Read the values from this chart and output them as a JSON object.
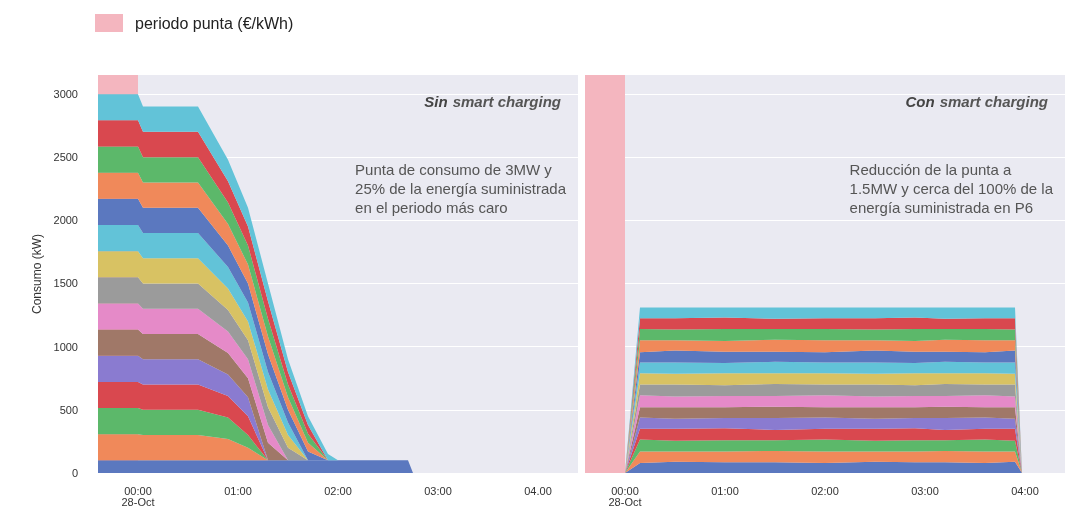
{
  "chart_data": [
    {
      "type": "area",
      "title": "Sin smart charging",
      "ylabel": "Consumo (kW)",
      "stacked": true,
      "grid": "y",
      "legend": "top left",
      "annotations": [
        "Punta de consumo de 3MW y\n25% de la energía suministrada\nen el periodo más caro"
      ],
      "bands": [
        {
          "axis": "x",
          "from": -0.4,
          "to": 0,
          "label": "periodo punta (€/kWh)",
          "color": "#f4b6bf"
        }
      ],
      "xlim": [
        -0.4,
        4.4
      ],
      "xticks": [
        {
          "value": 0,
          "label": "00:00\n28-Oct"
        },
        {
          "value": 1,
          "label": "01:00"
        },
        {
          "value": 2,
          "label": "02:00"
        },
        {
          "value": 3,
          "label": "03:00"
        },
        {
          "value": 4,
          "label": "04.00"
        }
      ],
      "ylim": [
        0,
        3150
      ],
      "yticks": [
        0,
        500,
        1000,
        1500,
        2000,
        2500,
        3000
      ],
      "x": [
        -0.4,
        0,
        0.05,
        0.6,
        0.9,
        1.1,
        1.3,
        1.5,
        1.7,
        1.9,
        2.0,
        2.7,
        2.75,
        4.4
      ],
      "series": [
        {
          "color": "#5b78bf",
          "values": [
            100,
            100,
            100,
            100,
            100,
            100,
            100,
            100,
            100,
            100,
            100,
            100,
            0,
            0
          ]
        },
        {
          "color": "#f0895a",
          "values": [
            207,
            207,
            200,
            200,
            170,
            100,
            0,
            0,
            0,
            0,
            0,
            0,
            0,
            0
          ]
        },
        {
          "color": "#5cb86a",
          "values": [
            207,
            207,
            200,
            200,
            170,
            100,
            0,
            0,
            0,
            0,
            0,
            0,
            0,
            0
          ]
        },
        {
          "color": "#d9484f",
          "values": [
            207,
            207,
            200,
            200,
            170,
            150,
            0,
            0,
            0,
            0,
            0,
            0,
            0,
            0
          ]
        },
        {
          "color": "#8a7bd0",
          "values": [
            207,
            207,
            200,
            200,
            170,
            150,
            0,
            0,
            0,
            0,
            0,
            0,
            0,
            0
          ]
        },
        {
          "color": "#a07868",
          "values": [
            207,
            207,
            200,
            200,
            170,
            150,
            140,
            0,
            0,
            0,
            0,
            0,
            0,
            0
          ]
        },
        {
          "color": "#e58ac8",
          "values": [
            207,
            207,
            200,
            200,
            170,
            150,
            140,
            0,
            0,
            0,
            0,
            0,
            0,
            0
          ]
        },
        {
          "color": "#9b9b9b",
          "values": [
            207,
            207,
            200,
            200,
            170,
            150,
            140,
            100,
            0,
            0,
            0,
            0,
            0,
            0
          ]
        },
        {
          "color": "#d8c263",
          "values": [
            207,
            207,
            200,
            200,
            170,
            150,
            140,
            100,
            0,
            0,
            0,
            0,
            0,
            0
          ]
        },
        {
          "color": "#62c3d8",
          "values": [
            207,
            207,
            200,
            200,
            170,
            150,
            140,
            100,
            0,
            0,
            0,
            0,
            0,
            0
          ]
        },
        {
          "color": "#5b78bf",
          "values": [
            207,
            207,
            200,
            200,
            170,
            150,
            140,
            100,
            70,
            0,
            0,
            0,
            0,
            0
          ]
        },
        {
          "color": "#f0895a",
          "values": [
            207,
            207,
            200,
            200,
            170,
            150,
            140,
            100,
            70,
            0,
            0,
            0,
            0,
            0
          ]
        },
        {
          "color": "#5cb86a",
          "values": [
            207,
            207,
            200,
            200,
            170,
            150,
            140,
            100,
            70,
            0,
            0,
            0,
            0,
            0
          ]
        },
        {
          "color": "#d9484f",
          "values": [
            207,
            207,
            200,
            200,
            170,
            150,
            140,
            100,
            70,
            0,
            0,
            0,
            0,
            0
          ]
        },
        {
          "color": "#62c3d8",
          "values": [
            207,
            207,
            200,
            200,
            170,
            150,
            140,
            100,
            70,
            50,
            0,
            0,
            0,
            0
          ]
        }
      ]
    },
    {
      "type": "area",
      "title": "Con smart charging",
      "stacked": true,
      "grid": "y",
      "tick_labels": "x",
      "annotations": [
        "Reducción de la punta a\n1.5MW y cerca del 100% de la\nenergía suministrada en P6"
      ],
      "bands": [
        {
          "axis": "x",
          "from": -0.4,
          "to": 0,
          "color": "#f4b6bf"
        }
      ],
      "xlim": [
        -0.4,
        4.4
      ],
      "xticks": [
        {
          "value": 0,
          "label": "00:00\n28-Oct"
        },
        {
          "value": 1,
          "label": "01:00"
        },
        {
          "value": 2,
          "label": "02:00"
        },
        {
          "value": 3,
          "label": "03:00"
        },
        {
          "value": 4,
          "label": "04:00"
        }
      ],
      "ylim": [
        0,
        3150
      ],
      "yticks": [
        0,
        500,
        1000,
        1500,
        2000,
        2500,
        3000
      ],
      "x": [
        -0.4,
        0,
        0.15,
        0.5,
        1.0,
        1.5,
        2.0,
        2.5,
        2.9,
        3.2,
        3.6,
        3.9,
        3.97,
        4.4
      ],
      "series": [
        {
          "color": "#5b78bf",
          "values": [
            0,
            0,
            80,
            90,
            85,
            85,
            80,
            90,
            85,
            85,
            80,
            90,
            0,
            0
          ]
        },
        {
          "color": "#f0895a",
          "values": [
            0,
            0,
            90,
            80,
            85,
            90,
            90,
            80,
            85,
            90,
            90,
            80,
            0,
            0
          ]
        },
        {
          "color": "#5cb86a",
          "values": [
            0,
            0,
            95,
            85,
            90,
            85,
            95,
            85,
            90,
            85,
            95,
            85,
            0,
            0
          ]
        },
        {
          "color": "#d9484f",
          "values": [
            0,
            0,
            85,
            95,
            95,
            80,
            85,
            95,
            95,
            80,
            85,
            95,
            0,
            0
          ]
        },
        {
          "color": "#8a7bd0",
          "values": [
            0,
            0,
            90,
            80,
            80,
            95,
            90,
            80,
            80,
            95,
            90,
            80,
            0,
            0
          ]
        },
        {
          "color": "#a07868",
          "values": [
            0,
            0,
            80,
            90,
            85,
            90,
            80,
            90,
            85,
            90,
            80,
            90,
            0,
            0
          ]
        },
        {
          "color": "#e58ac8",
          "values": [
            0,
            0,
            95,
            85,
            90,
            85,
            95,
            85,
            90,
            85,
            95,
            85,
            0,
            0
          ]
        },
        {
          "color": "#9b9b9b",
          "values": [
            0,
            0,
            85,
            95,
            85,
            95,
            85,
            95,
            85,
            95,
            85,
            95,
            0,
            0
          ]
        },
        {
          "color": "#d8c263",
          "values": [
            0,
            0,
            90,
            85,
            95,
            85,
            90,
            85,
            95,
            85,
            90,
            85,
            0,
            0
          ]
        },
        {
          "color": "#62c3d8",
          "values": [
            0,
            0,
            85,
            90,
            80,
            90,
            85,
            90,
            80,
            90,
            85,
            90,
            0,
            0
          ]
        },
        {
          "color": "#5b78bf",
          "values": [
            0,
            0,
            80,
            95,
            90,
            80,
            80,
            95,
            90,
            80,
            80,
            95,
            0,
            0
          ]
        },
        {
          "color": "#f0895a",
          "values": [
            0,
            0,
            95,
            80,
            85,
            95,
            95,
            80,
            85,
            95,
            95,
            80,
            0,
            0
          ]
        },
        {
          "color": "#5cb86a",
          "values": [
            0,
            0,
            90,
            85,
            95,
            85,
            90,
            85,
            95,
            85,
            90,
            85,
            0,
            0
          ]
        },
        {
          "color": "#d9484f",
          "values": [
            0,
            0,
            85,
            90,
            90,
            80,
            85,
            90,
            90,
            80,
            85,
            90,
            0,
            0
          ]
        },
        {
          "color": "#62c3d8",
          "values": [
            0,
            0,
            85,
            85,
            80,
            90,
            85,
            85,
            80,
            90,
            85,
            85,
            0,
            0
          ]
        }
      ]
    }
  ]
}
